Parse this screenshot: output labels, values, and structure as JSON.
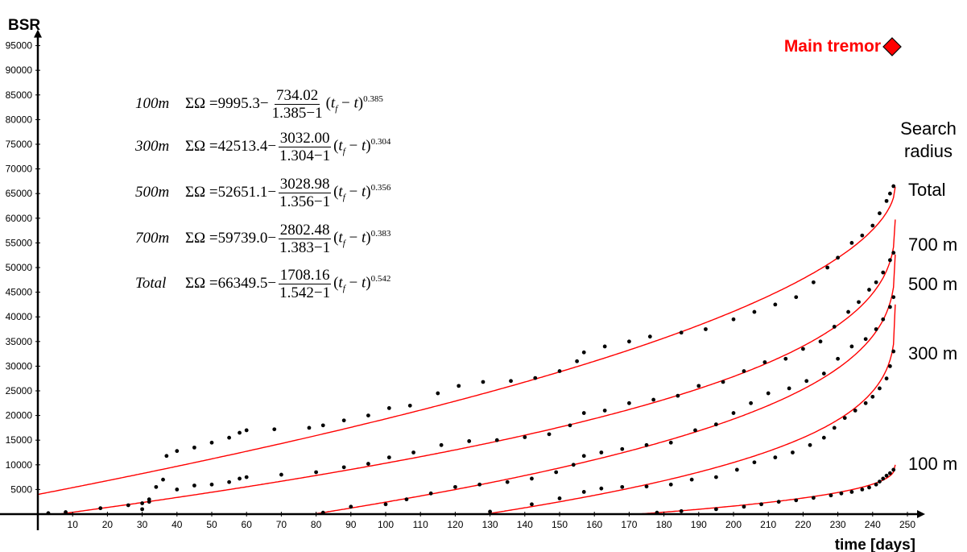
{
  "chart_data": {
    "type": "scatter",
    "ylabel": "BSR",
    "xlabel": "time [days]",
    "xlim": [
      0,
      250
    ],
    "ylim": [
      0,
      95000
    ],
    "xticks": [
      10,
      20,
      30,
      40,
      50,
      60,
      70,
      80,
      90,
      100,
      110,
      120,
      130,
      140,
      150,
      160,
      170,
      180,
      190,
      200,
      210,
      220,
      230,
      240,
      250
    ],
    "yticks": [
      5000,
      10000,
      15000,
      20000,
      25000,
      30000,
      35000,
      40000,
      45000,
      50000,
      55000,
      60000,
      65000,
      70000,
      75000,
      80000,
      85000,
      90000,
      95000
    ],
    "grid": false,
    "main_tremor": {
      "label": "Main tremor",
      "color": "#ff0000"
    },
    "radius_title": [
      "Search",
      "radius"
    ],
    "fit_color": "#ff0000",
    "point_color": "#000000",
    "series": [
      {
        "name": "100 m",
        "tf": 246.5,
        "A": 9995.3,
        "B": 734.02,
        "m": 1.385,
        "exp": 0.385,
        "equation": {
          "label": "100m",
          "A": "9995.3",
          "num": "734.02",
          "den": "1.385",
          "exp": "0.385"
        },
        "points": [
          [
            178,
            300
          ],
          [
            185,
            600
          ],
          [
            195,
            1000
          ],
          [
            203,
            1500
          ],
          [
            208,
            2000
          ],
          [
            213,
            2500
          ],
          [
            218,
            2800
          ],
          [
            223,
            3300
          ],
          [
            228,
            3800
          ],
          [
            231,
            4200
          ],
          [
            234,
            4500
          ],
          [
            237,
            5000
          ],
          [
            239,
            5400
          ],
          [
            241,
            6000
          ],
          [
            242,
            6600
          ],
          [
            243,
            7200
          ],
          [
            244,
            7800
          ],
          [
            245,
            8300
          ],
          [
            246,
            9000
          ]
        ]
      },
      {
        "name": "300 m",
        "tf": 246.5,
        "A": 42513.4,
        "B": 3032.0,
        "m": 1.304,
        "exp": 0.304,
        "equation": {
          "label": "300m",
          "A": "42513.4",
          "num": "3032.00",
          "den": "1.304",
          "exp": "0.304"
        },
        "points": [
          [
            130,
            500
          ],
          [
            142,
            2000
          ],
          [
            150,
            3200
          ],
          [
            157,
            4500
          ],
          [
            162,
            5200
          ],
          [
            168,
            5500
          ],
          [
            175,
            5600
          ],
          [
            182,
            6000
          ],
          [
            188,
            7000
          ],
          [
            195,
            7500
          ],
          [
            201,
            9000
          ],
          [
            206,
            10500
          ],
          [
            212,
            11500
          ],
          [
            217,
            12500
          ],
          [
            222,
            14000
          ],
          [
            226,
            15500
          ],
          [
            229,
            17500
          ],
          [
            232,
            19500
          ],
          [
            235,
            21000
          ],
          [
            238,
            22500
          ],
          [
            240,
            23800
          ],
          [
            242,
            25500
          ],
          [
            244,
            27500
          ],
          [
            245,
            30000
          ],
          [
            246,
            33000
          ]
        ]
      },
      {
        "name": "500 m",
        "tf": 246.5,
        "A": 52651.1,
        "B": 3028.98,
        "m": 1.356,
        "exp": 0.356,
        "equation": {
          "label": "500m",
          "A": "52651.1",
          "num": "3028.98",
          "den": "1.356",
          "exp": "0.356"
        },
        "points": [
          [
            82,
            300
          ],
          [
            90,
            1500
          ],
          [
            100,
            2000
          ],
          [
            106,
            3000
          ],
          [
            113,
            4200
          ],
          [
            120,
            5500
          ],
          [
            127,
            6000
          ],
          [
            135,
            6500
          ],
          [
            142,
            7200
          ],
          [
            149,
            8500
          ],
          [
            154,
            10000
          ],
          [
            157,
            11800
          ],
          [
            162,
            12500
          ],
          [
            168,
            13200
          ],
          [
            175,
            14000
          ],
          [
            182,
            14500
          ],
          [
            189,
            17000
          ],
          [
            195,
            18200
          ],
          [
            200,
            20500
          ],
          [
            205,
            22500
          ],
          [
            210,
            24500
          ],
          [
            216,
            25500
          ],
          [
            221,
            27000
          ],
          [
            226,
            28500
          ],
          [
            230,
            31500
          ],
          [
            234,
            34000
          ],
          [
            238,
            35500
          ],
          [
            241,
            37500
          ],
          [
            243,
            39500
          ],
          [
            245,
            42000
          ],
          [
            246,
            44000
          ]
        ]
      },
      {
        "name": "700 m",
        "tf": 246.5,
        "A": 59739.0,
        "B": 2802.48,
        "m": 1.383,
        "exp": 0.383,
        "equation": {
          "label": "700m",
          "A": "59739.0",
          "num": "2802.48",
          "den": "1.383",
          "exp": "0.383"
        },
        "points": [
          [
            3,
            200
          ],
          [
            8,
            400
          ],
          [
            18,
            1200
          ],
          [
            26,
            1800
          ],
          [
            30,
            2200
          ],
          [
            32,
            3000
          ],
          [
            34,
            5500
          ],
          [
            36,
            7000
          ],
          [
            40,
            5000
          ],
          [
            45,
            5800
          ],
          [
            50,
            6000
          ],
          [
            55,
            6500
          ],
          [
            58,
            7200
          ],
          [
            60,
            7500
          ],
          [
            70,
            8000
          ],
          [
            80,
            8500
          ],
          [
            88,
            9500
          ],
          [
            95,
            10200
          ],
          [
            101,
            11500
          ],
          [
            108,
            12500
          ],
          [
            116,
            14000
          ],
          [
            124,
            14800
          ],
          [
            132,
            15000
          ],
          [
            140,
            15600
          ],
          [
            147,
            16200
          ],
          [
            153,
            18000
          ],
          [
            157,
            20500
          ],
          [
            163,
            21000
          ],
          [
            170,
            22500
          ],
          [
            177,
            23200
          ],
          [
            184,
            24000
          ],
          [
            190,
            26000
          ],
          [
            197,
            26800
          ],
          [
            203,
            29000
          ],
          [
            209,
            30800
          ],
          [
            215,
            31500
          ],
          [
            220,
            33500
          ],
          [
            225,
            35000
          ],
          [
            229,
            38000
          ],
          [
            233,
            41000
          ],
          [
            236,
            43000
          ],
          [
            239,
            45500
          ],
          [
            241,
            47000
          ],
          [
            243,
            49000
          ],
          [
            245,
            51500
          ],
          [
            246,
            53000
          ]
        ]
      },
      {
        "name": "Total",
        "tf": 246.5,
        "A": 66349.5,
        "B": 1708.16,
        "m": 1.542,
        "exp": 0.542,
        "equation": {
          "label": "Total",
          "A": "66349.5",
          "num": "1708.16",
          "den": "1.542",
          "exp": "0.542"
        },
        "points": [
          [
            30,
            1000
          ],
          [
            32,
            2500
          ],
          [
            37,
            11800
          ],
          [
            40,
            12800
          ],
          [
            45,
            13500
          ],
          [
            50,
            14500
          ],
          [
            55,
            15500
          ],
          [
            58,
            16500
          ],
          [
            60,
            17000
          ],
          [
            68,
            17200
          ],
          [
            78,
            17500
          ],
          [
            82,
            18000
          ],
          [
            88,
            19000
          ],
          [
            95,
            20000
          ],
          [
            101,
            21500
          ],
          [
            107,
            22000
          ],
          [
            115,
            24500
          ],
          [
            121,
            26000
          ],
          [
            128,
            26800
          ],
          [
            136,
            27000
          ],
          [
            143,
            27600
          ],
          [
            150,
            29000
          ],
          [
            155,
            31000
          ],
          [
            157,
            32800
          ],
          [
            163,
            34000
          ],
          [
            170,
            35000
          ],
          [
            176,
            36000
          ],
          [
            185,
            36800
          ],
          [
            192,
            37500
          ],
          [
            200,
            39500
          ],
          [
            206,
            41000
          ],
          [
            212,
            42500
          ],
          [
            218,
            44000
          ],
          [
            223,
            47000
          ],
          [
            227,
            50000
          ],
          [
            230,
            52000
          ],
          [
            234,
            55000
          ],
          [
            237,
            56500
          ],
          [
            240,
            58500
          ],
          [
            242,
            61000
          ],
          [
            244,
            63500
          ],
          [
            245,
            65000
          ],
          [
            246,
            66500
          ]
        ]
      }
    ]
  }
}
